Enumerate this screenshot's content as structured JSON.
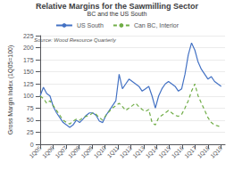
{
  "chart_data": {
    "type": "line",
    "title": "Relative Margins for the Sawmilling Sector",
    "subtitle": "BC and the US South",
    "ylabel": "Gross Margin Index (1Q05=100)",
    "annotations": [
      "Source: Wood Resource Quarterly"
    ],
    "x": [
      0,
      0.254545,
      0.509091,
      0.763636,
      1.018182,
      1.272727,
      1.527273,
      1.781818,
      2.036364,
      2.290909,
      2.545455,
      2.8,
      3.054545,
      3.309091,
      3.563636,
      3.818182,
      4.072727,
      4.327273,
      4.581818,
      4.836364,
      5.090909,
      5.345455,
      5.6,
      5.854545,
      6.109091,
      6.363636,
      6.618182,
      6.872727,
      7.127273,
      7.381818,
      7.636364,
      7.890909,
      8.145455,
      8.4,
      8.654545,
      8.909091,
      9.163636,
      9.418182,
      9.672727,
      9.927273,
      10.181818,
      10.436364,
      10.690909,
      10.945455,
      11.2,
      11.454545,
      11.709091,
      11.963636,
      12.218182,
      12.472727,
      12.727273,
      12.981818,
      13.236364,
      13.490909,
      13.745455,
      14
    ],
    "series": [
      {
        "name": "US South",
        "color": "#4472C4",
        "line_style": "solid",
        "values": [
          100,
          118,
          105,
          100,
          78,
          65,
          55,
          45,
          40,
          35,
          40,
          50,
          45,
          52,
          60,
          65,
          65,
          60,
          48,
          45,
          60,
          70,
          80,
          90,
          145,
          115,
          125,
          135,
          130,
          125,
          120,
          110,
          115,
          120,
          100,
          75,
          100,
          115,
          125,
          130,
          125,
          120,
          110,
          115,
          145,
          185,
          210,
          195,
          170,
          155,
          145,
          135,
          140,
          130,
          125,
          120
        ]
      },
      {
        "name": "Can BC, Interior",
        "color": "#70AD47",
        "line_style": "dashed",
        "values": [
          100,
          95,
          85,
          90,
          80,
          70,
          60,
          50,
          45,
          42,
          48,
          52,
          50,
          55,
          58,
          60,
          65,
          62,
          55,
          50,
          60,
          68,
          75,
          80,
          85,
          78,
          70,
          75,
          80,
          85,
          78,
          72,
          68,
          72,
          45,
          40,
          55,
          60,
          65,
          70,
          65,
          60,
          58,
          62,
          75,
          90,
          110,
          125,
          100,
          85,
          70,
          55,
          45,
          40,
          38,
          35
        ]
      }
    ],
    "xlim": [
      -0.3,
      14.3
    ],
    "xticks": [
      {
        "value": 0,
        "label": "1Q05"
      },
      {
        "value": 1,
        "label": "1Q06"
      },
      {
        "value": 2,
        "label": "1Q07"
      },
      {
        "value": 3,
        "label": "1Q08"
      },
      {
        "value": 4,
        "label": "1Q09"
      },
      {
        "value": 5,
        "label": "1Q10"
      },
      {
        "value": 6,
        "label": "1Q11"
      },
      {
        "value": 7,
        "label": "1Q12"
      },
      {
        "value": 8,
        "label": "1Q13"
      },
      {
        "value": 9,
        "label": "1Q14"
      },
      {
        "value": 10,
        "label": "1Q15"
      },
      {
        "value": 11,
        "label": "1Q16"
      },
      {
        "value": 12,
        "label": "1Q17"
      },
      {
        "value": 13,
        "label": "1Q18"
      },
      {
        "value": 14,
        "label": "1Q19"
      }
    ],
    "ylim": [
      0,
      225
    ],
    "yticks": [
      0,
      25,
      50,
      75,
      100,
      125,
      150,
      175,
      200,
      225
    ],
    "grid": "y",
    "legend": "top"
  }
}
